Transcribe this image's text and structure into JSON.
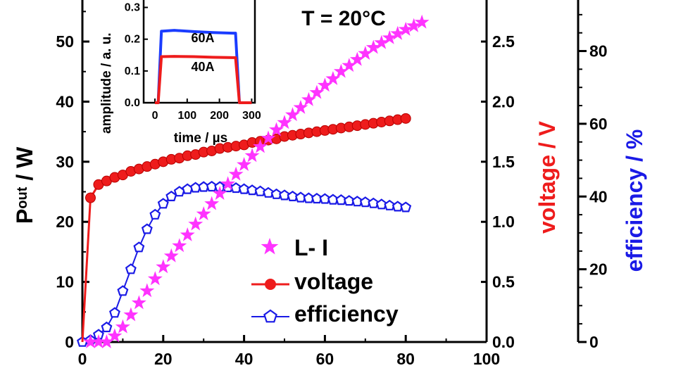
{
  "colors": {
    "axis": "#000000",
    "li_series": "#ff33ff",
    "voltage_series": "#ee1c1c",
    "efficiency_series": "#1a1ae6",
    "inset_60A": "#1a3cff",
    "inset_40A": "#ee1c1c"
  },
  "chart_data": [
    {
      "type": "scatter",
      "annotation": "T = 20°C",
      "x_ticks": [
        "0",
        "20",
        "40",
        "60",
        "80",
        "100"
      ],
      "xlim": [
        0,
        100
      ],
      "y_left": {
        "label_main": "P",
        "label_sub": "out",
        "label_rest": " / W",
        "ticks": [
          "0",
          "10",
          "20",
          "30",
          "40",
          "50"
        ],
        "lim": [
          0,
          57.5
        ]
      },
      "y_right1": {
        "label": "voltage / V",
        "ticks": [
          "0.0",
          "0.5",
          "1.0",
          "1.5",
          "2.0",
          "2.5"
        ],
        "lim": [
          0,
          2.875
        ]
      },
      "y_right2": {
        "label": "efficiency / %",
        "ticks": [
          "0",
          "20",
          "40",
          "60",
          "80"
        ],
        "lim": [
          0,
          95
        ]
      },
      "legend": {
        "position": "bottom-center",
        "entries": [
          "L- I",
          "voltage",
          "efficiency"
        ]
      },
      "series": [
        {
          "name": "L- I",
          "axis": "left",
          "marker": "star",
          "x": [
            2,
            4,
            6,
            8,
            10,
            12,
            14,
            16,
            18,
            20,
            22,
            24,
            26,
            28,
            30,
            32,
            34,
            36,
            38,
            40,
            42,
            44,
            46,
            48,
            50,
            52,
            54,
            56,
            58,
            60,
            62,
            64,
            66,
            68,
            70,
            72,
            74,
            76,
            78,
            80,
            82,
            84
          ],
          "y": [
            0,
            0,
            0,
            1,
            2.5,
            4.5,
            6.5,
            8.5,
            10.5,
            12.5,
            14.3,
            16,
            17.8,
            19.6,
            21.3,
            23,
            24.7,
            26.3,
            27.9,
            29.5,
            31,
            32.5,
            33.9,
            35.3,
            36.5,
            37.8,
            39,
            40.3,
            41.5,
            42.7,
            43.8,
            45,
            46,
            47,
            48,
            49,
            49.8,
            50.6,
            51.3,
            52,
            52.6,
            53.2
          ]
        },
        {
          "name": "voltage",
          "axis": "right1",
          "marker": "circle",
          "x": [
            0,
            2,
            4,
            6,
            8,
            10,
            12,
            14,
            16,
            18,
            20,
            22,
            24,
            26,
            28,
            30,
            32,
            34,
            36,
            38,
            40,
            42,
            44,
            46,
            48,
            50,
            52,
            54,
            56,
            58,
            60,
            62,
            64,
            66,
            68,
            70,
            72,
            74,
            76,
            78,
            80
          ],
          "y": [
            0,
            1.2,
            1.31,
            1.34,
            1.37,
            1.39,
            1.42,
            1.44,
            1.46,
            1.48,
            1.5,
            1.52,
            1.53,
            1.55,
            1.56,
            1.58,
            1.59,
            1.61,
            1.62,
            1.63,
            1.64,
            1.66,
            1.67,
            1.68,
            1.69,
            1.71,
            1.72,
            1.73,
            1.74,
            1.75,
            1.76,
            1.77,
            1.78,
            1.79,
            1.8,
            1.81,
            1.82,
            1.83,
            1.84,
            1.85,
            1.86
          ]
        },
        {
          "name": "efficiency",
          "axis": "right2",
          "marker": "pentagon",
          "x": [
            0,
            2,
            4,
            6,
            8,
            10,
            12,
            14,
            16,
            18,
            20,
            22,
            24,
            26,
            28,
            30,
            32,
            34,
            36,
            38,
            40,
            42,
            44,
            46,
            48,
            50,
            52,
            54,
            56,
            58,
            60,
            62,
            64,
            66,
            68,
            70,
            72,
            74,
            76,
            78,
            80
          ],
          "y": [
            0,
            0.5,
            2,
            4,
            8,
            14,
            20,
            26,
            31,
            35,
            38,
            40,
            41.3,
            42,
            42.4,
            42.6,
            42.7,
            42.6,
            42.5,
            42.3,
            42,
            41.7,
            41.4,
            41,
            40.6,
            40.3,
            40,
            39.7,
            39.5,
            39.4,
            39.3,
            39.1,
            39,
            38.8,
            38.6,
            38.4,
            38.1,
            37.8,
            37.5,
            37.2,
            37
          ]
        }
      ]
    },
    {
      "type": "line",
      "xlabel": "time / µs",
      "ylabel": "amplitude / a. u.",
      "x_ticks": [
        "0",
        "100",
        "200",
        "300"
      ],
      "y_ticks": [
        "0.0",
        "0.1",
        "0.2",
        "0.3"
      ],
      "xlim": [
        -35,
        310
      ],
      "ylim": [
        0,
        0.33
      ],
      "series": [
        {
          "name": "60A",
          "x": [
            0,
            10,
            20,
            60,
            120,
            180,
            240,
            250,
            262,
            275,
            300
          ],
          "y": [
            0,
            0,
            0.225,
            0.228,
            0.224,
            0.221,
            0.219,
            0.219,
            0,
            0,
            0
          ]
        },
        {
          "name": "40A",
          "x": [
            0,
            10,
            20,
            60,
            120,
            180,
            240,
            250,
            262,
            275,
            300
          ],
          "y": [
            0,
            0,
            0.145,
            0.146,
            0.145,
            0.143,
            0.142,
            0.142,
            0,
            0,
            0
          ]
        }
      ]
    }
  ]
}
